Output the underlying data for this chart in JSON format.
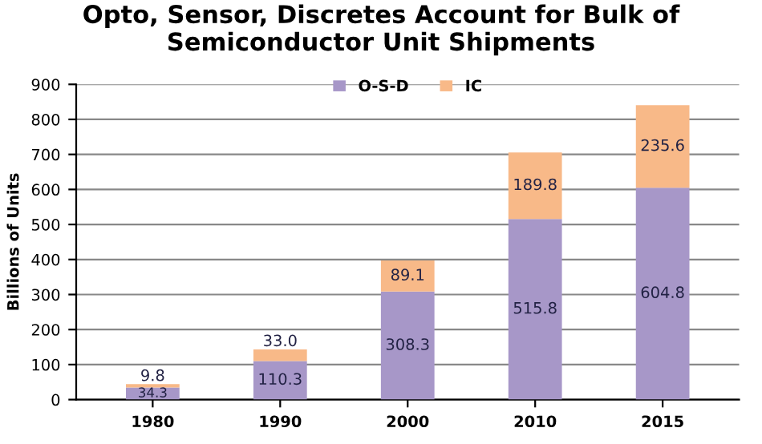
{
  "chart_data": {
    "type": "bar",
    "title": "Opto, Sensor, Discretes Account for Bulk of Semiconductor Unit Shipments",
    "ylabel": "Billions of Units",
    "categories": [
      "1980",
      "1990",
      "2000",
      "2010",
      "2015"
    ],
    "stacked": true,
    "series": [
      {
        "name": "O-S-D",
        "color": "#a797c8",
        "values": [
          34.3,
          110.3,
          308.3,
          515.8,
          604.8
        ],
        "value_labels": [
          "34.3",
          "110.3",
          "308.3",
          "515.8",
          "604.8"
        ]
      },
      {
        "name": "IC",
        "color": "#f8b988",
        "values": [
          9.8,
          33.0,
          89.1,
          189.8,
          235.6
        ],
        "value_labels": [
          "9.8",
          "33.0",
          "89.1",
          "189.8",
          "235.6"
        ]
      }
    ],
    "ylim": [
      0,
      900
    ],
    "yticks": [
      0,
      100,
      200,
      300,
      400,
      500,
      600,
      700,
      800,
      900
    ],
    "grid": "y",
    "legend": "top"
  }
}
